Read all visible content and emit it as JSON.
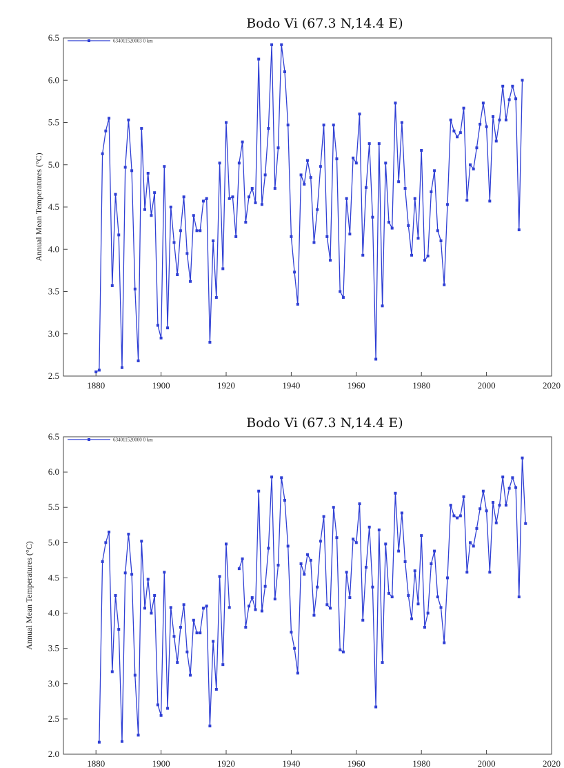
{
  "chart_data": [
    {
      "type": "line",
      "title": "Bodo Vi (67.3 N,14.4 E)",
      "xlabel": "",
      "ylabel": "Annual Mean Temperatures (°C)",
      "xlim": [
        1870,
        2020
      ],
      "ylim": [
        2.5,
        6.5
      ],
      "xticks": [
        1880,
        1900,
        1920,
        1940,
        1960,
        1980,
        2000,
        2020
      ],
      "xtick_labels": [
        "1880",
        "1900",
        "1920",
        "1940",
        "1960",
        "1980",
        "2000",
        "2020"
      ],
      "yticks": [
        2.5,
        3.0,
        3.5,
        4.0,
        4.5,
        5.0,
        5.5,
        6.0,
        6.5
      ],
      "ytick_labels": [
        "2.5",
        "3.0",
        "3.5",
        "4.0",
        "4.5",
        "5.0",
        "5.5",
        "6.0",
        "6.5"
      ],
      "grid": false,
      "legend_position": "top-left",
      "series_color": "#2f3fd4",
      "series": [
        {
          "name": "634011520003 0 km",
          "x": [
            1880,
            1881,
            1882,
            1883,
            1884,
            1885,
            1886,
            1887,
            1888,
            1889,
            1890,
            1891,
            1892,
            1893,
            1894,
            1895,
            1896,
            1897,
            1898,
            1899,
            1900,
            1901,
            1902,
            1903,
            1904,
            1905,
            1906,
            1907,
            1908,
            1909,
            1910,
            1911,
            1912,
            1913,
            1914,
            1915,
            1916,
            1917,
            1918,
            1919,
            1920,
            1921,
            1922,
            1923,
            1924,
            1925,
            1926,
            1927,
            1928,
            1929,
            1930,
            1931,
            1932,
            1933,
            1934,
            1935,
            1936,
            1937,
            1938,
            1939,
            1940,
            1941,
            1942,
            1943,
            1944,
            1945,
            1946,
            1947,
            1948,
            1949,
            1950,
            1951,
            1952,
            1953,
            1954,
            1955,
            1956,
            1957,
            1958,
            1959,
            1960,
            1961,
            1962,
            1963,
            1964,
            1965,
            1966,
            1967,
            1968,
            1969,
            1970,
            1971,
            1972,
            1973,
            1974,
            1975,
            1976,
            1977,
            1978,
            1979,
            1980,
            1981,
            1982,
            1983,
            1984,
            1985,
            1986,
            1987,
            1988,
            1989,
            1990,
            1991,
            1992,
            1993,
            1994,
            1995,
            1996,
            1997,
            1998,
            1999,
            2000,
            2001,
            2002,
            2003,
            2004,
            2005,
            2006,
            2007,
            2008,
            2009,
            2010,
            2011
          ],
          "y": [
            2.55,
            2.57,
            5.13,
            5.4,
            5.55,
            3.57,
            4.65,
            4.17,
            2.6,
            4.97,
            5.53,
            4.93,
            3.53,
            2.68,
            5.43,
            4.47,
            4.9,
            4.4,
            4.67,
            3.1,
            2.95,
            4.98,
            3.07,
            4.5,
            4.08,
            3.7,
            4.22,
            4.62,
            3.95,
            3.62,
            4.4,
            4.22,
            4.22,
            4.57,
            4.6,
            2.9,
            4.1,
            3.43,
            5.02,
            3.77,
            5.5,
            4.6,
            4.62,
            4.15,
            5.02,
            5.27,
            4.32,
            4.62,
            4.72,
            4.55,
            6.25,
            4.53,
            4.88,
            5.43,
            6.42,
            4.72,
            5.2,
            6.42,
            6.1,
            5.47,
            4.15,
            3.73,
            3.35,
            4.88,
            4.77,
            5.05,
            4.85,
            4.08,
            4.47,
            4.98,
            5.47,
            4.15,
            3.87,
            5.47,
            5.07,
            3.5,
            3.43,
            4.6,
            4.18,
            5.08,
            5.02,
            5.6,
            3.93,
            4.73,
            5.25,
            4.38,
            2.7,
            5.25,
            3.33,
            5.02,
            4.32,
            4.25,
            5.73,
            4.8,
            5.5,
            4.72,
            4.28,
            3.93,
            4.6,
            4.13,
            5.17,
            3.87,
            3.92,
            4.68,
            4.93,
            4.22,
            4.1,
            3.58,
            4.53,
            5.53,
            5.4,
            5.33,
            5.38,
            5.67,
            4.58,
            5.0,
            4.95,
            5.2,
            5.48,
            5.73,
            5.45,
            4.57,
            5.57,
            5.28,
            5.53,
            5.93,
            5.53,
            5.77,
            5.93,
            5.78,
            4.23,
            6.0
          ]
        }
      ]
    },
    {
      "type": "line",
      "title": "Bodo Vi (67.3 N,14.4 E)",
      "xlabel": "",
      "ylabel": "Annual Mean Temperatures (°C)",
      "xlim": [
        1870,
        2020
      ],
      "ylim": [
        2.0,
        6.5
      ],
      "xticks": [
        1880,
        1900,
        1920,
        1940,
        1960,
        1980,
        2000,
        2020
      ],
      "xtick_labels": [
        "1880",
        "1900",
        "1920",
        "1940",
        "1960",
        "1980",
        "2000",
        "2020"
      ],
      "yticks": [
        2.0,
        2.5,
        3.0,
        3.5,
        4.0,
        4.5,
        5.0,
        5.5,
        6.0,
        6.5
      ],
      "ytick_labels": [
        "2.0",
        "2.5",
        "3.0",
        "3.5",
        "4.0",
        "4.5",
        "5.0",
        "5.5",
        "6.0",
        "6.5"
      ],
      "grid": false,
      "legend_position": "top-left",
      "series_color": "#2f3fd4",
      "series": [
        {
          "name": "634011520000 0 km",
          "segments": [
            {
              "x": [
                1881,
                1882,
                1883,
                1884,
                1885,
                1886,
                1887,
                1888,
                1889,
                1890,
                1891,
                1892,
                1893,
                1894,
                1895,
                1896,
                1897,
                1898,
                1899,
                1900,
                1901,
                1902,
                1903,
                1904,
                1905,
                1906,
                1907,
                1908,
                1909,
                1910,
                1911,
                1912,
                1913,
                1914,
                1915,
                1916,
                1917,
                1918,
                1919,
                1920,
                1921
              ],
              "y": [
                2.17,
                4.73,
                5.0,
                5.15,
                3.17,
                4.25,
                3.77,
                2.18,
                4.57,
                5.12,
                4.55,
                3.12,
                2.27,
                5.02,
                4.07,
                4.48,
                4.0,
                4.25,
                2.7,
                2.55,
                4.58,
                2.65,
                4.08,
                3.67,
                3.3,
                3.8,
                4.12,
                3.45,
                3.12,
                3.9,
                3.72,
                3.72,
                4.07,
                4.1,
                2.4,
                3.6,
                2.92,
                4.52,
                3.27,
                4.98,
                4.08
              ]
            },
            {
              "x": [
                1924,
                1925,
                1926,
                1927,
                1928,
                1929,
                1930,
                1931,
                1932,
                1933,
                1934,
                1935,
                1936,
                1937,
                1938,
                1939,
                1940,
                1941,
                1942,
                1943,
                1944,
                1945,
                1946,
                1947,
                1948,
                1949,
                1950,
                1951,
                1952,
                1953,
                1954,
                1955,
                1956,
                1957,
                1958,
                1959,
                1960,
                1961,
                1962,
                1963,
                1964,
                1965,
                1966,
                1967,
                1968,
                1969,
                1970,
                1971,
                1972,
                1973,
                1974,
                1975,
                1976,
                1977,
                1978,
                1979,
                1980,
                1981,
                1982,
                1983,
                1984,
                1985,
                1986,
                1987,
                1988,
                1989,
                1990,
                1991,
                1992,
                1993,
                1994,
                1995,
                1996,
                1997,
                1998,
                1999,
                2000,
                2001,
                2002,
                2003,
                2004,
                2005,
                2006,
                2007,
                2008,
                2009,
                2010,
                2011,
                2012
              ],
              "y": [
                4.63,
                4.77,
                3.8,
                4.1,
                4.22,
                4.05,
                5.73,
                4.03,
                4.38,
                4.92,
                5.93,
                4.2,
                4.68,
                5.92,
                5.6,
                4.95,
                3.73,
                3.5,
                3.15,
                4.7,
                4.55,
                4.83,
                4.75,
                3.97,
                4.37,
                5.02,
                5.37,
                4.12,
                4.07,
                5.5,
                5.07,
                3.48,
                3.45,
                4.58,
                4.22,
                5.05,
                5.0,
                5.55,
                3.9,
                4.65,
                5.22,
                4.37,
                2.67,
                5.18,
                3.3,
                4.98,
                4.28,
                4.23,
                5.7,
                4.88,
                5.42,
                4.73,
                4.25,
                3.92,
                4.6,
                4.13,
                5.1,
                3.8,
                4.0,
                4.7,
                4.88,
                4.23,
                4.08,
                3.58,
                4.5,
                5.53,
                5.38,
                5.35,
                5.38,
                5.65,
                4.58,
                5.0,
                4.95,
                5.2,
                5.48,
                5.73,
                5.45,
                4.58,
                5.57,
                5.28,
                5.53,
                5.93,
                5.53,
                5.77,
                5.92,
                5.78,
                4.23,
                6.2,
                5.27
              ]
            }
          ]
        }
      ]
    }
  ]
}
